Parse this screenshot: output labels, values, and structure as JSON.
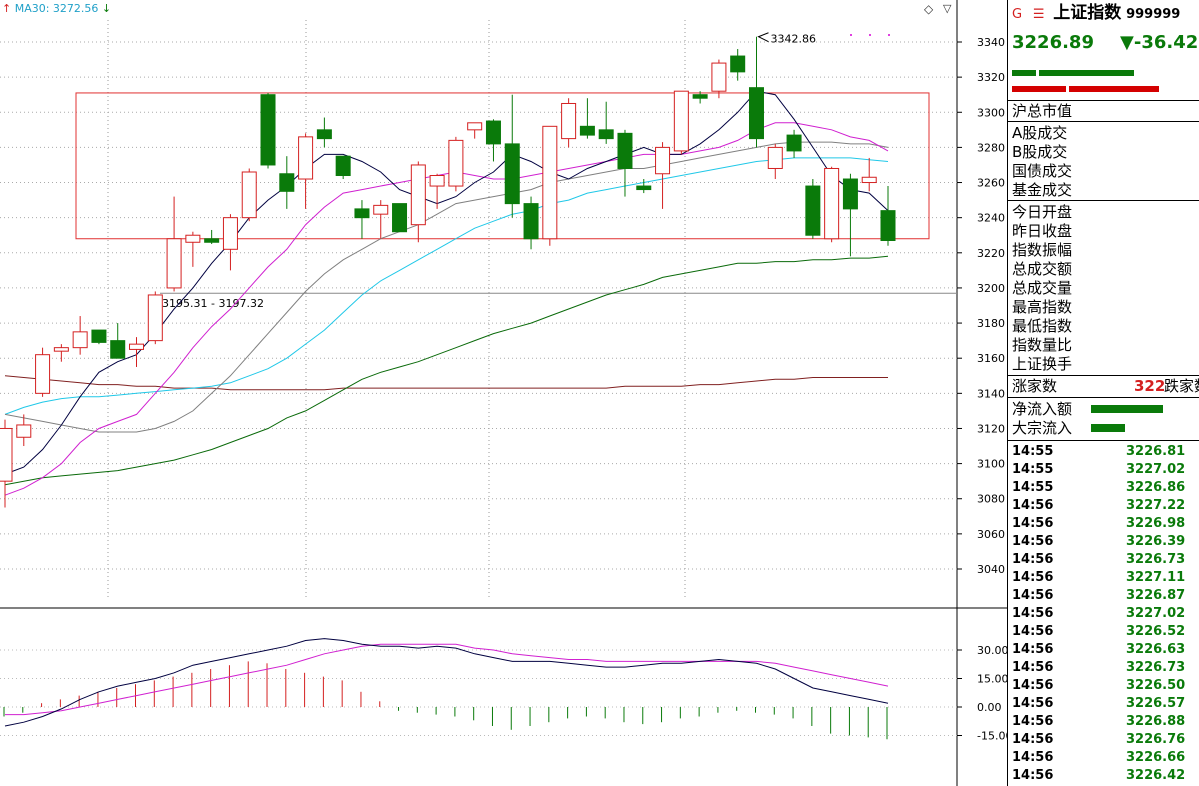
{
  "header": {
    "ma_label": "MA30: 3272.56",
    "stock_prefix": "G",
    "stock_name": "上证指数",
    "stock_code": "999999",
    "price": "3226.89",
    "change": "▼-36.42"
  },
  "annotations": {
    "high_label": "3342.86",
    "range_label": "3195.31 - 3197.32"
  },
  "colors": {
    "up": "#d42020",
    "down": "#0a7a0a",
    "ma5": "#000040",
    "ma10": "#d020d0",
    "ma20": "#808080",
    "ma30": "#20c8e8",
    "ma60": "#0a6a0a",
    "ma120": "#802020"
  },
  "chart_data": {
    "type": "candlestick",
    "y_ticks": [
      3340,
      3320,
      3300,
      3280,
      3260,
      3240,
      3220,
      3200,
      3180,
      3160,
      3140,
      3120,
      3100,
      3080,
      3060,
      3040
    ],
    "candles": [
      {
        "o": 3090,
        "h": 3125,
        "l": 3075,
        "c": 3120
      },
      {
        "o": 3115,
        "h": 3128,
        "l": 3110,
        "c": 3122
      },
      {
        "o": 3140,
        "h": 3166,
        "l": 3138,
        "c": 3162
      },
      {
        "o": 3164,
        "h": 3168,
        "l": 3158,
        "c": 3166
      },
      {
        "o": 3166,
        "h": 3184,
        "l": 3162,
        "c": 3175
      },
      {
        "o": 3176,
        "h": 3176,
        "l": 3168,
        "c": 3169
      },
      {
        "o": 3170,
        "h": 3180,
        "l": 3160,
        "c": 3160
      },
      {
        "o": 3165,
        "h": 3172,
        "l": 3155,
        "c": 3168
      },
      {
        "o": 3170,
        "h": 3198,
        "l": 3168,
        "c": 3196
      },
      {
        "o": 3200,
        "h": 3252,
        "l": 3198,
        "c": 3228
      },
      {
        "o": 3226,
        "h": 3232,
        "l": 3212,
        "c": 3230
      },
      {
        "o": 3228,
        "h": 3233,
        "l": 3225,
        "c": 3226
      },
      {
        "o": 3222,
        "h": 3242,
        "l": 3210,
        "c": 3240
      },
      {
        "o": 3240,
        "h": 3268,
        "l": 3238,
        "c": 3266
      },
      {
        "o": 3310,
        "h": 3311,
        "l": 3268,
        "c": 3270
      },
      {
        "o": 3265,
        "h": 3275,
        "l": 3245,
        "c": 3255
      },
      {
        "o": 3262,
        "h": 3288,
        "l": 3245,
        "c": 3286
      },
      {
        "o": 3290,
        "h": 3297,
        "l": 3280,
        "c": 3285
      },
      {
        "o": 3275,
        "h": 3275,
        "l": 3262,
        "c": 3264
      },
      {
        "o": 3245,
        "h": 3250,
        "l": 3228,
        "c": 3240
      },
      {
        "o": 3242,
        "h": 3250,
        "l": 3228,
        "c": 3247
      },
      {
        "o": 3248,
        "h": 3248,
        "l": 3232,
        "c": 3232
      },
      {
        "o": 3236,
        "h": 3272,
        "l": 3226,
        "c": 3270
      },
      {
        "o": 3258,
        "h": 3265,
        "l": 3245,
        "c": 3264
      },
      {
        "o": 3258,
        "h": 3286,
        "l": 3255,
        "c": 3284
      },
      {
        "o": 3290,
        "h": 3294,
        "l": 3285,
        "c": 3294
      },
      {
        "o": 3295,
        "h": 3296,
        "l": 3272,
        "c": 3282
      },
      {
        "o": 3282,
        "h": 3310,
        "l": 3240,
        "c": 3248
      },
      {
        "o": 3248,
        "h": 3252,
        "l": 3222,
        "c": 3228
      },
      {
        "o": 3228,
        "h": 3292,
        "l": 3224,
        "c": 3292
      },
      {
        "o": 3285,
        "h": 3308,
        "l": 3280,
        "c": 3305
      },
      {
        "o": 3292,
        "h": 3308,
        "l": 3285,
        "c": 3287
      },
      {
        "o": 3290,
        "h": 3306,
        "l": 3282,
        "c": 3285
      },
      {
        "o": 3288,
        "h": 3290,
        "l": 3252,
        "c": 3268
      },
      {
        "o": 3258,
        "h": 3262,
        "l": 3254,
        "c": 3256
      },
      {
        "o": 3265,
        "h": 3283,
        "l": 3245,
        "c": 3280
      },
      {
        "o": 3278,
        "h": 3312,
        "l": 3276,
        "c": 3312
      },
      {
        "o": 3310,
        "h": 3312,
        "l": 3305,
        "c": 3308
      },
      {
        "o": 3312,
        "h": 3330,
        "l": 3308,
        "c": 3328
      },
      {
        "o": 3332,
        "h": 3336,
        "l": 3318,
        "c": 3323
      },
      {
        "o": 3314,
        "h": 3343,
        "l": 3280,
        "c": 3285
      },
      {
        "o": 3268,
        "h": 3282,
        "l": 3262,
        "c": 3280
      },
      {
        "o": 3287,
        "h": 3290,
        "l": 3274,
        "c": 3278
      },
      {
        "o": 3258,
        "h": 3262,
        "l": 3228,
        "c": 3230
      },
      {
        "o": 3228,
        "h": 3269,
        "l": 3226,
        "c": 3268
      },
      {
        "o": 3262,
        "h": 3265,
        "l": 3218,
        "c": 3245
      },
      {
        "o": 3260,
        "h": 3274,
        "l": 3255,
        "c": 3263
      },
      {
        "o": 3244,
        "h": 3258,
        "l": 3224,
        "c": 3227
      }
    ],
    "ma": {
      "ma5": [
        3094,
        3098,
        3108,
        3122,
        3138,
        3152,
        3158,
        3162,
        3174,
        3188,
        3200,
        3214,
        3226,
        3240,
        3250,
        3258,
        3268,
        3276,
        3276,
        3272,
        3266,
        3256,
        3252,
        3248,
        3252,
        3260,
        3266,
        3276,
        3272,
        3266,
        3262,
        3268,
        3272,
        3276,
        3280,
        3276,
        3276,
        3282,
        3290,
        3300,
        3312,
        3310,
        3296,
        3280,
        3264,
        3256,
        3254,
        3244
      ],
      "ma10": [
        3082,
        3086,
        3092,
        3100,
        3112,
        3120,
        3124,
        3128,
        3140,
        3152,
        3166,
        3178,
        3188,
        3200,
        3212,
        3222,
        3236,
        3246,
        3254,
        3256,
        3258,
        3260,
        3262,
        3264,
        3266,
        3264,
        3262,
        3262,
        3264,
        3266,
        3268,
        3270,
        3272,
        3274,
        3276,
        3276,
        3276,
        3278,
        3280,
        3284,
        3290,
        3294,
        3294,
        3292,
        3290,
        3286,
        3284,
        3278
      ],
      "ma20": [
        3128,
        3126,
        3124,
        3122,
        3120,
        3118,
        3118,
        3118,
        3120,
        3124,
        3130,
        3140,
        3150,
        3162,
        3174,
        3186,
        3198,
        3208,
        3216,
        3222,
        3228,
        3232,
        3236,
        3242,
        3248,
        3250,
        3252,
        3254,
        3256,
        3260,
        3262,
        3264,
        3266,
        3268,
        3268,
        3270,
        3272,
        3274,
        3276,
        3278,
        3280,
        3282,
        3283,
        3283,
        3283,
        3282,
        3282,
        3280
      ],
      "ma30": [
        3128,
        3132,
        3135,
        3137,
        3138,
        3138,
        3139,
        3140,
        3141,
        3142,
        3143,
        3144,
        3146,
        3150,
        3154,
        3160,
        3168,
        3176,
        3186,
        3196,
        3204,
        3210,
        3216,
        3222,
        3228,
        3234,
        3238,
        3242,
        3244,
        3248,
        3250,
        3254,
        3256,
        3258,
        3260,
        3262,
        3264,
        3266,
        3268,
        3270,
        3272,
        3273,
        3274,
        3274,
        3274,
        3274,
        3273,
        3272
      ],
      "ma60": [
        3088,
        3090,
        3092,
        3093,
        3094,
        3095,
        3096,
        3098,
        3100,
        3102,
        3105,
        3108,
        3112,
        3116,
        3120,
        3126,
        3130,
        3136,
        3142,
        3148,
        3152,
        3155,
        3158,
        3162,
        3166,
        3170,
        3174,
        3177,
        3180,
        3184,
        3188,
        3192,
        3196,
        3199,
        3202,
        3206,
        3208,
        3210,
        3212,
        3214,
        3214,
        3215,
        3215,
        3216,
        3216,
        3217,
        3217,
        3218
      ],
      "ma120": [
        3150,
        3149,
        3148,
        3147,
        3146,
        3145,
        3145,
        3144,
        3144,
        3143,
        3143,
        3143,
        3142,
        3142,
        3142,
        3142,
        3142,
        3142,
        3143,
        3143,
        3143,
        3143,
        3143,
        3143,
        3143,
        3143,
        3143,
        3143,
        3143,
        3143,
        3143,
        3143,
        3143,
        3144,
        3144,
        3144,
        3144,
        3145,
        3145,
        3146,
        3147,
        3148,
        3148,
        3149,
        3149,
        3149,
        3149,
        3149
      ]
    },
    "macd": {
      "y_ticks": [
        30.0,
        15.0,
        0.0,
        -15.0
      ],
      "hist": [
        -5,
        -3,
        2,
        4,
        6,
        8,
        10,
        12,
        14,
        16,
        18,
        20,
        22,
        24,
        23,
        20,
        18,
        16,
        14,
        8,
        3,
        -2,
        -3,
        -4,
        -5,
        -7,
        -10,
        -12,
        -10,
        -8,
        -6,
        -5,
        -6,
        -8,
        -9,
        -8,
        -6,
        -5,
        -3,
        -2,
        -3,
        -4,
        -6,
        -10,
        -14,
        -15,
        -16,
        -17
      ],
      "dif": [
        -10,
        -8,
        -5,
        -1,
        4,
        8,
        11,
        13,
        15,
        18,
        22,
        24,
        26,
        28,
        30,
        32,
        35,
        36,
        35,
        33,
        32,
        32,
        31,
        32,
        31,
        28,
        26,
        24,
        24,
        24,
        23,
        22,
        21,
        21,
        22,
        23,
        23,
        24,
        25,
        24,
        23,
        20,
        15,
        10,
        8,
        6,
        4,
        2
      ],
      "dea": [
        -4,
        -4,
        -3,
        -2,
        0,
        2,
        4,
        6,
        8,
        10,
        12,
        14,
        16,
        18,
        20,
        22,
        25,
        28,
        30,
        32,
        33,
        33,
        33,
        33,
        33,
        31,
        30,
        28,
        27,
        26,
        25,
        25,
        24,
        24,
        24,
        24,
        24,
        24,
        24,
        24,
        24,
        23,
        21,
        19,
        17,
        15,
        13,
        11
      ]
    }
  },
  "panel": {
    "sections1": [
      "沪总市值"
    ],
    "sections2": [
      "A股成交",
      "B股成交",
      "国债成交",
      "基金成交"
    ],
    "sections3": [
      "今日开盘",
      "昨日收盘",
      "指数振幅",
      "总成交额",
      "总成交量",
      "最高指数",
      "最低指数",
      "指数量比",
      "上证换手"
    ],
    "rise_label": "涨家数",
    "rise_value": "322",
    "fall_label": "跌家数",
    "flow_labels": [
      "净流入额",
      "大宗流入"
    ],
    "ticks": [
      {
        "time": "14:55",
        "price": "3226.81"
      },
      {
        "time": "14:55",
        "price": "3227.02"
      },
      {
        "time": "14:55",
        "price": "3226.86"
      },
      {
        "time": "14:56",
        "price": "3227.22"
      },
      {
        "time": "14:56",
        "price": "3226.98"
      },
      {
        "time": "14:56",
        "price": "3226.39"
      },
      {
        "time": "14:56",
        "price": "3226.73"
      },
      {
        "time": "14:56",
        "price": "3227.11"
      },
      {
        "time": "14:56",
        "price": "3226.87"
      },
      {
        "time": "14:56",
        "price": "3227.02"
      },
      {
        "time": "14:56",
        "price": "3226.52"
      },
      {
        "time": "14:56",
        "price": "3226.63"
      },
      {
        "time": "14:56",
        "price": "3226.73"
      },
      {
        "time": "14:56",
        "price": "3226.50"
      },
      {
        "time": "14:56",
        "price": "3226.57"
      },
      {
        "time": "14:56",
        "price": "3226.88"
      },
      {
        "time": "14:56",
        "price": "3226.76"
      },
      {
        "time": "14:56",
        "price": "3226.66"
      },
      {
        "time": "14:56",
        "price": "3226.42"
      }
    ]
  }
}
